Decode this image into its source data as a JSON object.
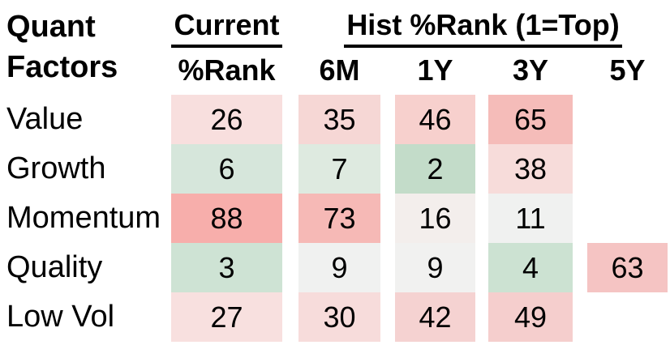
{
  "header": {
    "title_line1": "Quant",
    "title_line2": "Factors",
    "current_group": "Current",
    "hist_group": "Hist %Rank (1=Top)",
    "col_headers": [
      "%Rank",
      "6M",
      "1Y",
      "3Y",
      "5Y"
    ]
  },
  "chart_data": {
    "type": "heatmap",
    "title": "Quant Factors percentile rank heatmap (1=Top)",
    "rows": [
      "Value",
      "Growth",
      "Momentum",
      "Quality",
      "Low Vol"
    ],
    "columns": [
      "Current %Rank",
      "6M",
      "1Y",
      "3Y",
      "5Y"
    ],
    "values": [
      [
        26,
        35,
        46,
        65,
        null
      ],
      [
        6,
        7,
        2,
        38,
        null
      ],
      [
        88,
        73,
        16,
        11,
        null
      ],
      [
        3,
        9,
        9,
        4,
        63
      ],
      [
        27,
        30,
        42,
        49,
        null
      ]
    ],
    "cell_colors": [
      [
        "#f8dfde",
        "#f6d7d5",
        "#f7d0cd",
        "#f5bcb9",
        null
      ],
      [
        "#d6e6db",
        "#deeae0",
        "#c3dcc9",
        "#f7dcda",
        null
      ],
      [
        "#f7aeab",
        "#f6b9b6",
        "#f3eeec",
        "#f0f1f0",
        null
      ],
      [
        "#cee3d4",
        "#f0f1f0",
        "#f1f1f0",
        "#cce2d2",
        "#f5c4c3"
      ],
      [
        "#f8e0df",
        "#f7dcdb",
        "#f5d2d1",
        "#f5cecd",
        null
      ]
    ],
    "color_scale": {
      "low": "#c3dcc9",
      "mid": "#f1f1f0",
      "high": "#f7aeab",
      "note": "green = low rank number (top), red = high rank number"
    },
    "text_color": "#000000",
    "layout_hint": "table heatmap, no gridlines, white gaps between columns"
  }
}
